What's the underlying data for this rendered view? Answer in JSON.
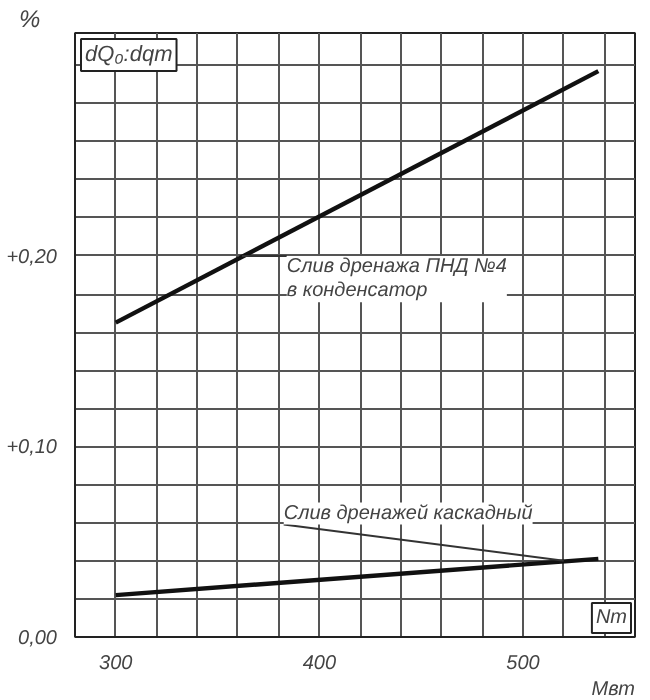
{
  "chart_data": {
    "type": "line",
    "title": "dQ₀:dqт",
    "ylabel": "%",
    "xlabel": "Nт",
    "x": [
      300,
      537
    ],
    "series": [
      {
        "color": "#111111",
        "values": [
          0.165,
          0.297
        ]
      },
      {
        "color": "#111111",
        "values": [
          0.022,
          0.041
        ]
      }
    ],
    "xlim": [
      280,
      555
    ],
    "ylim": [
      0,
      0.317
    ],
    "xticks": [
      300,
      {
        "value": 320,
        "label": null
      },
      {
        "value": 340,
        "label": null
      },
      {
        "value": 360,
        "label": null
      },
      {
        "value": 380,
        "label": null
      },
      400,
      {
        "value": 420,
        "label": null
      },
      {
        "value": 440,
        "label": null
      },
      {
        "value": 460,
        "label": null
      },
      {
        "value": 480,
        "label": null
      },
      500,
      {
        "value": 520,
        "label": null
      },
      {
        "value": 540,
        "label": null
      }
    ],
    "yticks": [
      {
        "value": 0,
        "label": "0,00"
      },
      {
        "value": 0.02,
        "label": null
      },
      {
        "value": 0.04,
        "label": null
      },
      {
        "value": 0.06,
        "label": null
      },
      {
        "value": 0.08,
        "label": null
      },
      {
        "value": 0.1,
        "label": "+0,10"
      },
      {
        "value": 0.12,
        "label": null
      },
      {
        "value": 0.14,
        "label": null
      },
      {
        "value": 0.16,
        "label": null
      },
      {
        "value": 0.18,
        "label": null
      },
      {
        "value": 0.2,
        "label": "+0,20"
      },
      {
        "value": 0.22,
        "label": null
      },
      {
        "value": 0.24,
        "label": null
      },
      {
        "value": 0.26,
        "label": null
      },
      {
        "value": 0.28,
        "label": null
      },
      {
        "value": 0.3,
        "label": null
      }
    ],
    "grid": true,
    "annotations": [
      {
        "text": "Слив дренажа ПНД №4\nв конденсатор",
        "x": 362,
        "y": 0.2
      },
      {
        "text": "Слив дренажей каскадный",
        "x": 520,
        "y": 0.04
      },
      "Мвт"
    ]
  }
}
